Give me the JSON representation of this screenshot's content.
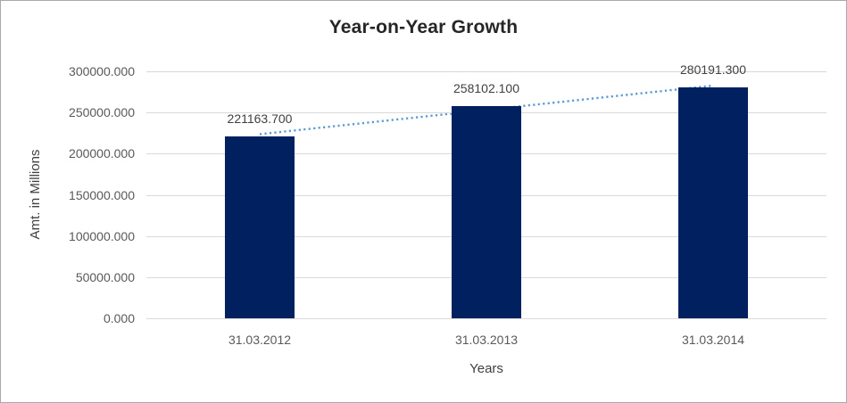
{
  "chart_data": {
    "type": "bar",
    "title": "Year-on-Year Growth",
    "xlabel": "Years",
    "ylabel": "Amt. in Millions",
    "categories": [
      "31.03.2012",
      "31.03.2013",
      "31.03.2014"
    ],
    "values": [
      221163.7,
      258102.1,
      280191.3
    ],
    "data_labels": [
      "221163.700",
      "258102.100",
      "280191.300"
    ],
    "ylim": [
      0,
      300000
    ],
    "ytick_values": [
      0,
      50000,
      100000,
      150000,
      200000,
      250000,
      300000
    ],
    "ytick_labels": [
      "0.000",
      "50000.000",
      "100000.000",
      "150000.000",
      "200000.000",
      "250000.000",
      "300000.000"
    ],
    "grid": true,
    "legend": "none",
    "trendline": {
      "type": "linear",
      "style": "dotted"
    },
    "colors": {
      "bar": "#002060",
      "trendline": "#5B9BD5",
      "gridline": "#D9D9D9",
      "tick_text": "#595959",
      "label_text": "#404040",
      "title_text": "#262626"
    }
  }
}
